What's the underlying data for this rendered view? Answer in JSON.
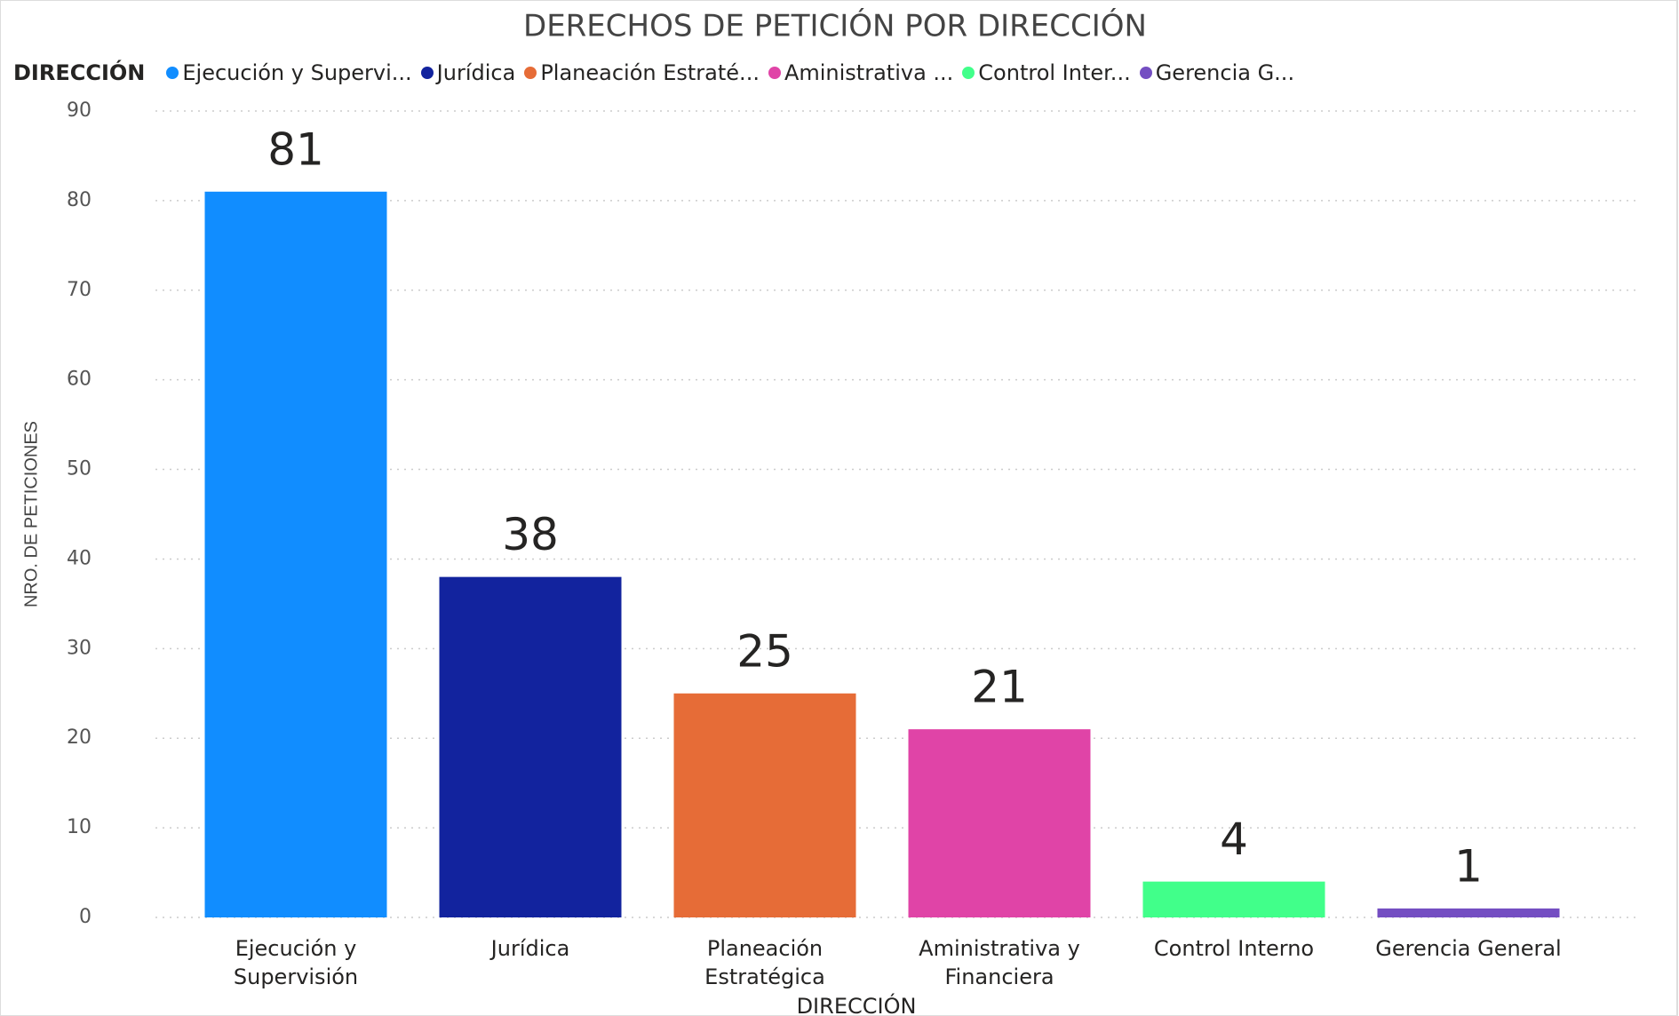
{
  "chart_data": {
    "type": "bar",
    "title": "DERECHOS DE PETICIÓN POR DIRECCIÓN",
    "legend_title": "DIRECCIÓN",
    "legend_labels": [
      "Ejecución y Supervi...",
      "Jurídica",
      "Planeación Estraté...",
      "Aministrativa ...",
      "Control Inter...",
      "Gerencia G..."
    ],
    "categories": [
      "Ejecución y Supervisión",
      "Jurídica",
      "Planeación Estratégica",
      "Aministrativa y Financiera",
      "Control Interno",
      "Gerencia General"
    ],
    "values": [
      81,
      38,
      25,
      21,
      4,
      1
    ],
    "colors": [
      "#118dff",
      "#12239e",
      "#e66c37",
      "#e044a7",
      "#41ff8a",
      "#744ec2"
    ],
    "x_label": "DIRECCIÓN",
    "y_label": "NRO. DE PETICIONES",
    "ylim": [
      0,
      90
    ],
    "yticks": [
      0,
      10,
      20,
      30,
      40,
      50,
      60,
      70,
      80,
      90
    ],
    "grid": true
  }
}
